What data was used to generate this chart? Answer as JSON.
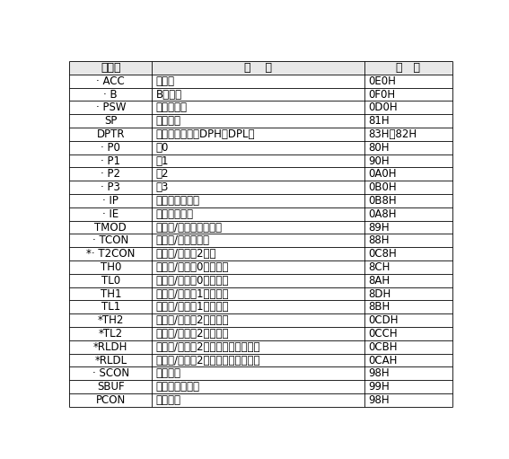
{
  "col_headers": [
    "标识符",
    "名    称",
    "地   址"
  ],
  "col_ratios": [
    0.215,
    0.555,
    0.23
  ],
  "rows": [
    [
      "· ACC",
      "累加器",
      "0E0H"
    ],
    [
      "· B",
      "B寄存器",
      "0F0H"
    ],
    [
      "· PSW",
      "程序状态字",
      "0D0H"
    ],
    [
      "SP",
      "堆栈指针",
      "81H"
    ],
    [
      "DPTR",
      "数据指针（包括DPH、DPL）",
      "83H、82H"
    ],
    [
      "· P0",
      "口0",
      "80H"
    ],
    [
      "· P1",
      "口1",
      "90H"
    ],
    [
      "· P2",
      "口2",
      "0A0H"
    ],
    [
      "· P3",
      "口3",
      "0B0H"
    ],
    [
      "· IP",
      "中断优先级控制",
      "0B8H"
    ],
    [
      "· IE",
      "中断允许控制",
      "0A8H"
    ],
    [
      "TMOD",
      "定时器/计数器方式控制",
      "89H"
    ],
    [
      "· TCON",
      "定时器/计数器控制",
      "88H"
    ],
    [
      "*· T2CON",
      "定时器/计数切2控制",
      "0C8H"
    ],
    [
      "TH0",
      "定时器/计数切0高位字节",
      "8CH"
    ],
    [
      "TL0",
      "定时器/计数切0低位字节",
      "8AH"
    ],
    [
      "TH1",
      "定时器/计数切1高位字节",
      "8DH"
    ],
    [
      "TL1",
      "定时器/计数切1低位字节",
      "8BH"
    ],
    [
      "*TH2",
      "定时器/计数切2高位字节",
      "0CDH"
    ],
    [
      "*TL2",
      "定时器/计数切2低位字节",
      "0CCH"
    ],
    [
      "*RLDH",
      "定时器/计数切2自动再装载高位字节",
      "0CBH"
    ],
    [
      "*RLDL",
      "定时器/计数切2自动再装载低位字节",
      "0CAH"
    ],
    [
      "· SCON",
      "串行控制",
      "98H"
    ],
    [
      "SBUF",
      "串行数据缓冲器",
      "99H"
    ],
    [
      "PCON",
      "电源控制",
      "98H"
    ]
  ],
  "border_color": "#000000",
  "text_color": "#000000",
  "header_bg": "#e8e8e8",
  "row_bg": "#ffffff",
  "font_size": 8.5,
  "header_font_size": 9.0,
  "lw": 0.6
}
